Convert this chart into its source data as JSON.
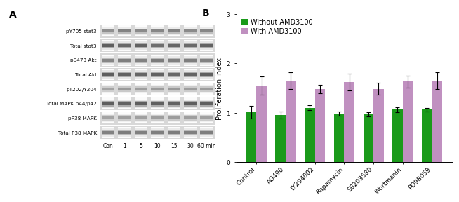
{
  "panel_b": {
    "categories": [
      "Control",
      "AG490",
      "LY294002",
      "Rapamycin",
      "SB203580",
      "Wortmanin",
      "PD98059"
    ],
    "without_amd": [
      1.01,
      0.95,
      1.1,
      0.98,
      0.97,
      1.06,
      1.06
    ],
    "with_amd": [
      1.55,
      1.65,
      1.48,
      1.62,
      1.48,
      1.63,
      1.65
    ],
    "without_amd_err": [
      0.13,
      0.07,
      0.05,
      0.04,
      0.04,
      0.05,
      0.04
    ],
    "with_amd_err": [
      0.18,
      0.17,
      0.08,
      0.17,
      0.12,
      0.12,
      0.17
    ],
    "color_without": "#1a9a1a",
    "color_with": "#c090c0",
    "ylabel": "Proliferation index",
    "ylim": [
      0,
      3
    ],
    "yticks": [
      0,
      1,
      2,
      3
    ],
    "legend_without": "Without AMD3100",
    "legend_with": "With AMD3100",
    "bar_width": 0.35,
    "label_fontsize": 7,
    "tick_fontsize": 6.5,
    "legend_fontsize": 7,
    "panel_label": "B"
  },
  "panel_a": {
    "rows": [
      "pY705 stat3",
      "Total stat3",
      "pS473 Akt",
      "Total Akt",
      "pT202/Y204",
      "Total MAPK p44/p42",
      "pP38 MAPK",
      "Total P38 MAPK"
    ],
    "cols": [
      "Con",
      "1",
      "5",
      "10",
      "15",
      "30",
      "60 min"
    ],
    "panel_label": "A",
    "label_fontsize": 6,
    "bg_color": "#c8c8c8",
    "band_intensities": {
      "pY705 stat3": [
        0.45,
        0.38,
        0.42,
        0.4,
        0.38,
        0.42,
        0.4
      ],
      "Total stat3": [
        0.2,
        0.25,
        0.22,
        0.28,
        0.24,
        0.26,
        0.22
      ],
      "pS473 Akt": [
        0.4,
        0.36,
        0.38,
        0.35,
        0.37,
        0.36,
        0.38
      ],
      "Total Akt": [
        0.2,
        0.22,
        0.24,
        0.22,
        0.25,
        0.23,
        0.21
      ],
      "pT202/Y204": [
        0.55,
        0.5,
        0.52,
        0.51,
        0.5,
        0.52,
        0.51
      ],
      "Total MAPK p44/p42": [
        0.2,
        0.22,
        0.2,
        0.21,
        0.22,
        0.2,
        0.21
      ],
      "pP38 MAPK": [
        0.55,
        0.52,
        0.53,
        0.52,
        0.51,
        0.52,
        0.53
      ],
      "Total P38 MAPK": [
        0.38,
        0.35,
        0.37,
        0.36,
        0.35,
        0.37,
        0.36
      ]
    }
  }
}
